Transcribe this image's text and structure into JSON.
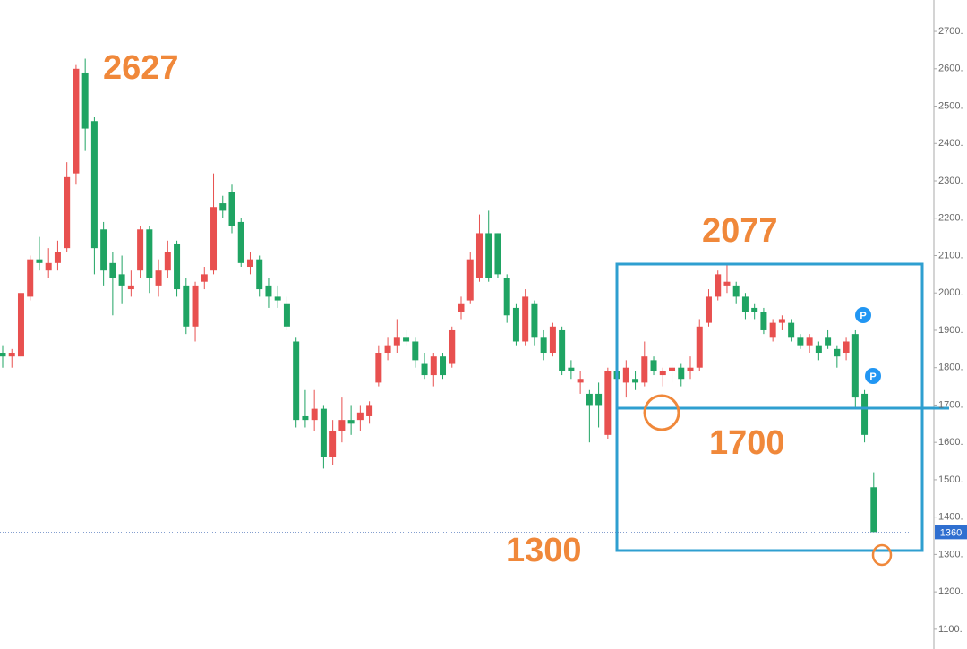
{
  "chart_data": {
    "type": "candlestick",
    "ylim": [
      1047,
      2784
    ],
    "yticks": [
      {
        "value": 1100,
        "label": "1100."
      },
      {
        "value": 1200,
        "label": "1200."
      },
      {
        "value": 1300,
        "label": "1300."
      },
      {
        "value": 1400,
        "label": "1400."
      },
      {
        "value": 1500,
        "label": "1500."
      },
      {
        "value": 1600,
        "label": "1600."
      },
      {
        "value": 1700,
        "label": "1700."
      },
      {
        "value": 1800,
        "label": "1800."
      },
      {
        "value": 1900,
        "label": "1900."
      },
      {
        "value": 2000,
        "label": "2000."
      },
      {
        "value": 2100,
        "label": "2100."
      },
      {
        "value": 2200,
        "label": "2200."
      },
      {
        "value": 2300,
        "label": "2300."
      },
      {
        "value": 2400,
        "label": "2400."
      },
      {
        "value": 2500,
        "label": "2500."
      },
      {
        "value": 2600,
        "label": "2600."
      },
      {
        "value": 2700,
        "label": "2700."
      }
    ],
    "up_color": "#e8504f",
    "down_color": "#1fa463",
    "last_price": 1360,
    "open": [
      1840,
      1830,
      1830,
      1990,
      2090,
      2060,
      2080,
      2120,
      2320,
      2590,
      2460,
      2170,
      2080,
      2050,
      2010,
      2060,
      2170,
      2020,
      2060,
      2130,
      2020,
      1910,
      2030,
      2060,
      2240,
      2270,
      2190,
      2070,
      2090,
      2020,
      1990,
      1970,
      1870,
      1670,
      1660,
      1690,
      1560,
      1630,
      1660,
      1660,
      1670,
      1760,
      1840,
      1860,
      1880,
      1870,
      1810,
      1780,
      1830,
      1810,
      1950,
      1980,
      2040,
      2160,
      2160,
      2040,
      1960,
      1870,
      1970,
      1880,
      1840,
      1900,
      1800,
      1760,
      1730,
      1730,
      1620,
      1790,
      1760,
      1770,
      1760,
      1820,
      1780,
      1790,
      1800,
      1790,
      1800,
      1920,
      1990,
      2020,
      2020,
      1990,
      1960,
      1950,
      1880,
      1920,
      1920,
      1880,
      1860,
      1860,
      1880,
      1850,
      1840,
      1890,
      1730,
      1480
    ],
    "high": [
      1860,
      1850,
      2010,
      2100,
      2150,
      2120,
      2140,
      2350,
      2610,
      2627,
      2470,
      2190,
      2110,
      2100,
      2060,
      2180,
      2180,
      2090,
      2140,
      2140,
      2040,
      2030,
      2070,
      2320,
      2260,
      2290,
      2200,
      2110,
      2100,
      2040,
      2020,
      1990,
      1880,
      1740,
      1740,
      1700,
      1660,
      1720,
      1700,
      1700,
      1710,
      1860,
      1880,
      1930,
      1900,
      1880,
      1840,
      1840,
      1840,
      1910,
      1990,
      2110,
      2210,
      2220,
      2160,
      2050,
      1970,
      2010,
      1980,
      1900,
      1920,
      1910,
      1820,
      1790,
      1740,
      1760,
      1800,
      1810,
      1820,
      1790,
      1870,
      1830,
      1800,
      1810,
      1810,
      1830,
      1930,
      2010,
      2060,
      2077,
      2030,
      2000,
      1970,
      1960,
      1930,
      1940,
      1930,
      1890,
      1890,
      1870,
      1900,
      1860,
      1880,
      1900,
      1740,
      1520
    ],
    "low": [
      1800,
      1800,
      1820,
      1980,
      2060,
      2040,
      2060,
      2110,
      2290,
      2380,
      2050,
      2020,
      1940,
      1970,
      1990,
      2040,
      2000,
      1990,
      2040,
      1990,
      1890,
      1870,
      2010,
      2050,
      2200,
      2160,
      2070,
      2050,
      1990,
      1960,
      1960,
      1900,
      1640,
      1640,
      1630,
      1530,
      1540,
      1600,
      1620,
      1630,
      1650,
      1750,
      1820,
      1840,
      1860,
      1800,
      1770,
      1750,
      1770,
      1800,
      1930,
      1970,
      2030,
      2030,
      2040,
      1920,
      1860,
      1860,
      1860,
      1820,
      1830,
      1780,
      1770,
      1730,
      1600,
      1640,
      1610,
      1740,
      1720,
      1740,
      1750,
      1780,
      1750,
      1760,
      1750,
      1770,
      1790,
      1910,
      1980,
      2000,
      1970,
      1930,
      1930,
      1890,
      1870,
      1900,
      1870,
      1850,
      1840,
      1820,
      1850,
      1800,
      1820,
      1690,
      1600,
      1360
    ],
    "close": [
      1830,
      1840,
      2000,
      2090,
      2080,
      2080,
      2110,
      2310,
      2600,
      2440,
      2120,
      2060,
      2040,
      2020,
      2020,
      2170,
      2040,
      2060,
      2110,
      2010,
      1910,
      2020,
      2050,
      2230,
      2220,
      2180,
      2080,
      2090,
      2010,
      1990,
      1980,
      1910,
      1660,
      1660,
      1690,
      1560,
      1630,
      1660,
      1650,
      1680,
      1700,
      1840,
      1860,
      1880,
      1870,
      1820,
      1780,
      1830,
      1780,
      1900,
      1970,
      2090,
      2160,
      2040,
      2050,
      1940,
      1870,
      1990,
      1880,
      1840,
      1910,
      1790,
      1790,
      1770,
      1700,
      1700,
      1790,
      1770,
      1800,
      1760,
      1830,
      1790,
      1790,
      1800,
      1770,
      1800,
      1910,
      1990,
      2050,
      2030,
      1990,
      1950,
      1950,
      1900,
      1920,
      1930,
      1880,
      1860,
      1880,
      1840,
      1860,
      1830,
      1870,
      1720,
      1620,
      1360
    ],
    "annotations": [
      "2627",
      "2077",
      "1700",
      "1300"
    ],
    "markers": [
      "P",
      "P"
    ]
  }
}
